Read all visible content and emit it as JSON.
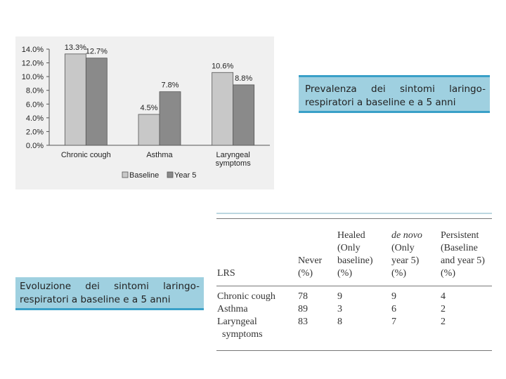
{
  "chart_data": {
    "type": "bar",
    "categories": [
      "Chronic cough",
      "Asthma",
      "Laryngeal symptoms"
    ],
    "category_lines": [
      [
        "Chronic cough"
      ],
      [
        "Asthma"
      ],
      [
        "Laryngeal",
        "symptoms"
      ]
    ],
    "series": [
      {
        "name": "Baseline",
        "values": [
          13.3,
          4.5,
          10.6
        ],
        "labels": [
          "13.3%",
          "4.5%",
          "10.6%"
        ],
        "color": "#c8c8c8"
      },
      {
        "name": "Year 5",
        "values": [
          12.7,
          7.8,
          8.8
        ],
        "labels": [
          "12.7%",
          "7.8%",
          "8.8%"
        ],
        "color": "#8a8a8a"
      }
    ],
    "ylim": [
      0,
      14
    ],
    "yticks": [
      "0.0%",
      "2.0%",
      "4.0%",
      "6.0%",
      "8.0%",
      "10.0%",
      "12.0%",
      "14.0%"
    ],
    "legend": [
      "Baseline",
      "Year 5"
    ],
    "legend_position": "bottom",
    "grid": false
  },
  "callouts": {
    "top": [
      "Prevalenza dei sintomi laringo-",
      "respiratori a baseline e a 5 anni"
    ],
    "bottom": [
      "Evoluzione dei sintomi laringo-",
      "respiratori a baseline e a 5 anni"
    ]
  },
  "table": {
    "headers": [
      {
        "lines": [
          "LRS"
        ]
      },
      {
        "lines": [
          "Never",
          "(%)"
        ]
      },
      {
        "lines": [
          "Healed",
          "(Only",
          "baseline)",
          "(%)"
        ]
      },
      {
        "lines": [
          "de novo",
          "(Only",
          "year 5)",
          "(%)"
        ],
        "italic_first": true
      },
      {
        "lines": [
          "Persistent",
          "(Baseline",
          "and year 5)",
          "(%)"
        ]
      }
    ],
    "rows": [
      {
        "lines": [
          "Chronic cough"
        ],
        "values": [
          "78",
          "9",
          "9",
          "4"
        ]
      },
      {
        "lines": [
          "Asthma"
        ],
        "values": [
          "89",
          "3",
          "6",
          "2"
        ]
      },
      {
        "lines": [
          "Laryngeal",
          "symptoms"
        ],
        "values": [
          "83",
          "8",
          "7",
          "2"
        ]
      }
    ]
  }
}
